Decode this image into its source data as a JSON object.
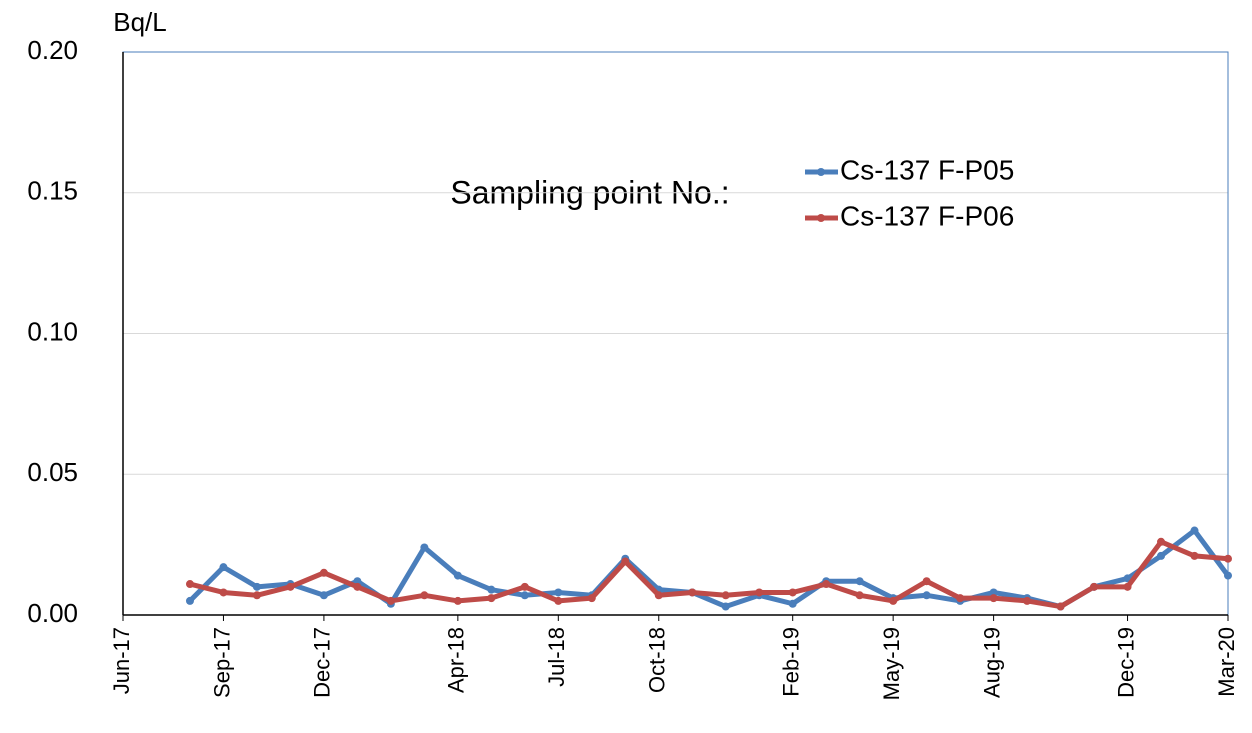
{
  "chart_data": {
    "type": "line",
    "y_label": "Bq/L",
    "annotation": "Sampling point No.:",
    "x": [
      "2017-08",
      "2017-09",
      "2017-10",
      "2017-11",
      "2017-12",
      "2018-01",
      "2018-02",
      "2018-03",
      "2018-04",
      "2018-05",
      "2018-06",
      "2018-07",
      "2018-08",
      "2018-09",
      "2018-10",
      "2018-11",
      "2018-12",
      "2019-01",
      "2019-02",
      "2019-03",
      "2019-04",
      "2019-05",
      "2019-06",
      "2019-07",
      "2019-08",
      "2019-09",
      "2019-10",
      "2019-11",
      "2019-12",
      "2020-01",
      "2020-02",
      "2020-03"
    ],
    "series": [
      {
        "name": "Cs-137 F-P05",
        "color": "#4a7ebb",
        "values": [
          0.005,
          0.017,
          0.01,
          0.011,
          0.007,
          0.012,
          0.004,
          0.024,
          0.014,
          0.009,
          0.007,
          0.008,
          0.007,
          0.02,
          0.009,
          0.008,
          0.003,
          0.007,
          0.004,
          0.012,
          0.012,
          0.006,
          0.007,
          0.005,
          0.008,
          0.006,
          0.003,
          0.01,
          0.013,
          0.021,
          0.03,
          0.014
        ]
      },
      {
        "name": "Cs-137 F-P06",
        "color": "#be4b48",
        "values": [
          0.011,
          0.008,
          0.007,
          0.01,
          0.015,
          0.01,
          0.005,
          0.007,
          0.005,
          0.006,
          0.01,
          0.005,
          0.006,
          0.019,
          0.007,
          0.008,
          0.007,
          0.008,
          0.008,
          0.011,
          0.007,
          0.005,
          0.012,
          0.006,
          0.006,
          0.005,
          0.003,
          0.01,
          0.01,
          0.026,
          0.021,
          0.02
        ]
      }
    ],
    "xlim": [
      "2017-06",
      "2020-03"
    ],
    "xticks": [
      {
        "value": "2017-06",
        "label": "Jun-17"
      },
      {
        "value": "2017-09",
        "label": "Sep-17"
      },
      {
        "value": "2017-12",
        "label": "Dec-17"
      },
      {
        "value": "2018-04",
        "label": "Apr-18"
      },
      {
        "value": "2018-07",
        "label": "Jul-18"
      },
      {
        "value": "2018-10",
        "label": "Oct-18"
      },
      {
        "value": "2019-02",
        "label": "Feb-19"
      },
      {
        "value": "2019-05",
        "label": "May-19"
      },
      {
        "value": "2019-08",
        "label": "Aug-19"
      },
      {
        "value": "2019-12",
        "label": "Dec-19"
      },
      {
        "value": "2020-03",
        "label": "Mar-20"
      }
    ],
    "ylim": [
      0,
      0.2
    ],
    "yticks": [
      {
        "value": 0,
        "label": "0.00"
      },
      {
        "value": 0.05,
        "label": "0.05"
      },
      {
        "value": 0.1,
        "label": "0.10"
      },
      {
        "value": 0.15,
        "label": "0.15"
      },
      {
        "value": 0.2,
        "label": "0.20"
      }
    ],
    "grid": true
  }
}
